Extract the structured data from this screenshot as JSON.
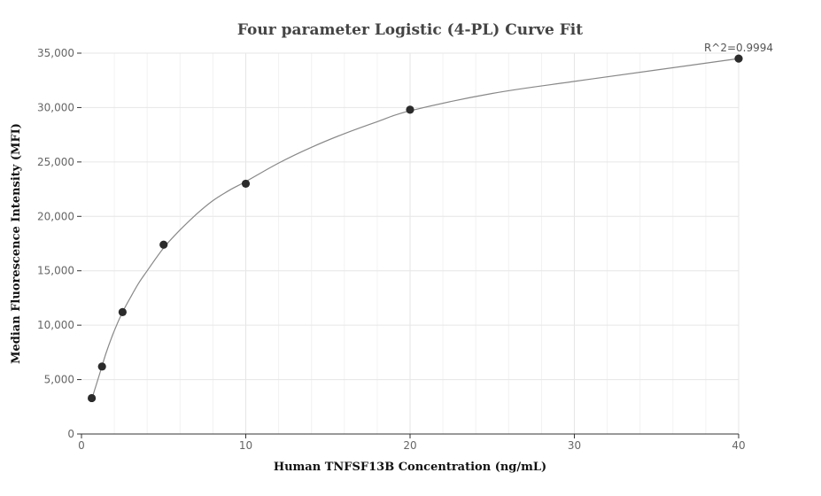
{
  "chart_data": {
    "type": "scatter",
    "title": "Four parameter Logistic (4-PL) Curve Fit",
    "xlabel": "Human TNFSF13B Concentration (ng/mL)",
    "ylabel": "Median Fluorescence Intensity (MFI)",
    "xlim": [
      0,
      40
    ],
    "ylim": [
      0,
      35000
    ],
    "x_ticks": [
      0,
      10,
      20,
      30,
      40
    ],
    "y_ticks": [
      0,
      5000,
      10000,
      15000,
      20000,
      25000,
      30000,
      35000
    ],
    "x_tick_labels": [
      "0",
      "10",
      "20",
      "30",
      "40"
    ],
    "y_tick_labels": [
      "0",
      "5,000",
      "10,000",
      "15,000",
      "20,000",
      "25,000",
      "30,000",
      "35,000"
    ],
    "grid": true,
    "series": [
      {
        "type": "scatter",
        "x": [
          0.625,
          1.25,
          2.5,
          5,
          10,
          20,
          40
        ],
        "y": [
          3300,
          6200,
          11200,
          17400,
          23000,
          29800,
          34500
        ],
        "color": "#2b2b2b"
      },
      {
        "type": "line",
        "x": [
          0.625,
          1,
          1.5,
          2,
          2.5,
          3,
          3.5,
          4,
          5,
          6,
          7,
          8,
          9,
          10,
          12,
          14,
          16,
          18,
          20,
          25,
          30,
          35,
          40
        ],
        "y": [
          3200,
          5000,
          7450,
          9500,
          11200,
          12600,
          13900,
          15000,
          17100,
          18750,
          20200,
          21450,
          22400,
          23200,
          24900,
          26350,
          27600,
          28700,
          29700,
          31300,
          32400,
          33450,
          34500
        ],
        "color": "#888888"
      }
    ],
    "annotation": "R^2=0.9994"
  }
}
